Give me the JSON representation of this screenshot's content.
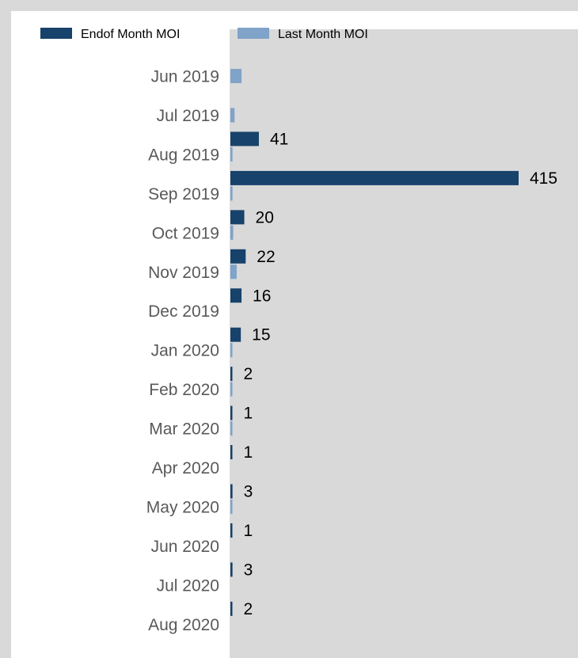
{
  "chart_data": {
    "type": "bar",
    "orientation": "horizontal",
    "categories": [
      "Jun 2019",
      "Jul 2019",
      "Aug 2019",
      "Sep 2019",
      "Oct 2019",
      "Nov 2019",
      "Dec 2019",
      "Jan 2020",
      "Feb 2020",
      "Mar 2020",
      "Apr 2020",
      "May 2020",
      "Jun 2020",
      "Jul 2020",
      "Aug 2020"
    ],
    "series": [
      {
        "name": "Endof Month MOI",
        "color": "#17426b",
        "values": [
          0,
          41,
          415,
          20,
          22,
          16,
          15,
          2,
          1,
          1,
          3,
          1,
          3,
          2,
          0
        ],
        "labels": [
          "",
          "41",
          "415",
          "20",
          "22",
          "16",
          "15",
          "2",
          "1",
          "1",
          "3",
          "1",
          "3",
          "2",
          ""
        ]
      },
      {
        "name": "Last Month MOI",
        "color": "#7fa3c9",
        "values": [
          16,
          6,
          3,
          3,
          4,
          9,
          0,
          1,
          1,
          1,
          0,
          1,
          0,
          0,
          0
        ]
      }
    ],
    "xlim": [
      0,
      415
    ],
    "legend_position": "top",
    "plot_background": "#d9d9d9"
  }
}
